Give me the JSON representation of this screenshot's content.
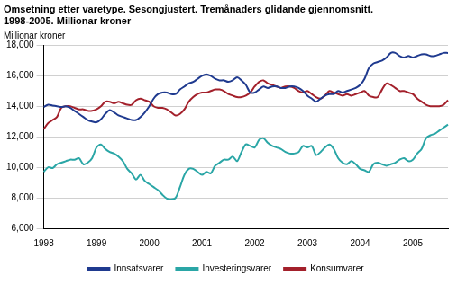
{
  "chart_data": {
    "type": "line",
    "title": [
      "Omsetning etter varetype. Sesongjustert. Tremånaders glidande gjennomsnitt.",
      "1998-2005. Millionar kroner"
    ],
    "ylabel": "Millionar kroner",
    "categories": [
      "1998",
      null,
      null,
      null,
      null,
      null,
      null,
      null,
      null,
      null,
      null,
      null,
      "1999",
      null,
      null,
      null,
      null,
      null,
      null,
      null,
      null,
      null,
      null,
      null,
      "2000",
      null,
      null,
      null,
      null,
      null,
      null,
      null,
      null,
      null,
      null,
      null,
      "2001",
      null,
      null,
      null,
      null,
      null,
      null,
      null,
      null,
      null,
      null,
      null,
      "2002",
      null,
      null,
      null,
      null,
      null,
      null,
      null,
      null,
      null,
      null,
      null,
      "2003",
      null,
      null,
      null,
      null,
      null,
      null,
      null,
      null,
      null,
      null,
      null,
      "2004",
      null,
      null,
      null,
      null,
      null,
      null,
      null,
      null,
      null,
      null,
      null,
      "2005",
      null,
      null,
      null,
      null,
      null,
      null,
      null,
      null
    ],
    "series": [
      {
        "name": "Innsatsvarer",
        "color": "#1f3a8f",
        "values": [
          13950,
          14100,
          14050,
          14000,
          13950,
          14000,
          13900,
          13700,
          13500,
          13300,
          13100,
          13000,
          12950,
          13150,
          13500,
          13750,
          13600,
          13400,
          13300,
          13200,
          13100,
          13100,
          13300,
          13600,
          14000,
          14500,
          14800,
          14900,
          14900,
          14800,
          14800,
          15100,
          15300,
          15500,
          15600,
          15800,
          16000,
          16100,
          16000,
          15800,
          15700,
          15700,
          15600,
          15700,
          15900,
          15700,
          15400,
          14900,
          14900,
          15100,
          15300,
          15200,
          15300,
          15300,
          15200,
          15200,
          15300,
          15300,
          15200,
          15000,
          14700,
          14500,
          14300,
          14500,
          14700,
          14800,
          14800,
          15000,
          14900,
          15000,
          15100,
          15200,
          15400,
          15800,
          16500,
          16800,
          16900,
          17000,
          17200,
          17500,
          17500,
          17300,
          17200,
          17300,
          17200,
          17300,
          17400,
          17400,
          17300,
          17300,
          17400,
          17500,
          17500
        ]
      },
      {
        "name": "Investeringsvarer",
        "color": "#2aa6a6",
        "values": [
          9700,
          10000,
          9950,
          10200,
          10300,
          10400,
          10500,
          10500,
          10600,
          10200,
          10300,
          10600,
          11300,
          11500,
          11200,
          11000,
          10900,
          10700,
          10400,
          9900,
          9600,
          9200,
          9500,
          9100,
          8900,
          8700,
          8500,
          8200,
          7950,
          7900,
          8000,
          8700,
          9500,
          9900,
          9900,
          9700,
          9500,
          9700,
          9600,
          10100,
          10300,
          10500,
          10500,
          10700,
          10400,
          11000,
          11500,
          11400,
          11300,
          11800,
          11900,
          11600,
          11400,
          11300,
          11200,
          11000,
          10900,
          10900,
          11000,
          11400,
          11300,
          11400,
          10800,
          11000,
          11300,
          11500,
          11200,
          10600,
          10300,
          10200,
          10400,
          10200,
          9900,
          9800,
          9700,
          10200,
          10300,
          10200,
          10100,
          10200,
          10300,
          10500,
          10600,
          10400,
          10500,
          10900,
          11200,
          11900,
          12100,
          12200,
          12400,
          12600,
          12800
        ]
      },
      {
        "name": "Konsumvarer",
        "color": "#a3202b",
        "values": [
          12500,
          12900,
          13100,
          13300,
          13900,
          14000,
          14000,
          13900,
          13800,
          13800,
          13700,
          13700,
          13800,
          14000,
          14300,
          14300,
          14200,
          14300,
          14200,
          14100,
          14100,
          14400,
          14500,
          14400,
          14300,
          14000,
          13900,
          13900,
          13800,
          13600,
          13400,
          13500,
          13800,
          14300,
          14600,
          14800,
          14900,
          14900,
          15000,
          15100,
          15100,
          15000,
          14800,
          14700,
          14600,
          14600,
          14700,
          14900,
          15300,
          15600,
          15700,
          15500,
          15400,
          15300,
          15200,
          15300,
          15300,
          15200,
          15000,
          14900,
          15000,
          14800,
          14600,
          14500,
          14700,
          15000,
          14900,
          14800,
          14700,
          14800,
          14700,
          14800,
          14900,
          15000,
          14700,
          14600,
          14600,
          15100,
          15500,
          15400,
          15200,
          15000,
          15000,
          14900,
          14800,
          14500,
          14300,
          14100,
          14000,
          14000,
          14000,
          14100,
          14400
        ]
      }
    ],
    "ylim": [
      6000,
      18000
    ],
    "yticks": [
      6000,
      8000,
      10000,
      12000,
      14000,
      16000,
      18000
    ],
    "grid": true,
    "legend": "bottom"
  }
}
